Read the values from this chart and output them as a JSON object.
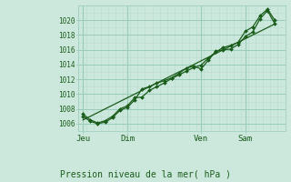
{
  "background_color": "#cce8dc",
  "grid_color_major": "#99ccbb",
  "grid_color_minor": "#b8ddd0",
  "line_color": "#1a5c1a",
  "marker_color": "#1a5c1a",
  "title": "Pression niveau de la mer( hPa )",
  "ylim": [
    1005.0,
    1022.0
  ],
  "yticks": [
    1006,
    1008,
    1010,
    1012,
    1014,
    1016,
    1018,
    1020
  ],
  "day_labels": [
    "Jeu",
    "Dim",
    "Ven",
    "Sam"
  ],
  "day_positions": [
    0,
    3,
    8,
    11
  ],
  "xlim": [
    -0.3,
    13.7
  ],
  "vline_positions": [
    0,
    3,
    8,
    11
  ],
  "line1_x": [
    0,
    0.5,
    1.0,
    1.5,
    2.0,
    2.5,
    3.0,
    3.5,
    4.0,
    4.5,
    5.0,
    5.5,
    6.0,
    6.5,
    7.0,
    7.5,
    8.0,
    8.5,
    9.0,
    9.5,
    10.0,
    10.5,
    11.0,
    11.5,
    12.0,
    12.5,
    13.0
  ],
  "line1_y": [
    1007.0,
    1006.3,
    1006.0,
    1006.2,
    1006.8,
    1007.8,
    1008.2,
    1009.2,
    1010.7,
    1011.0,
    1011.5,
    1011.8,
    1012.2,
    1012.8,
    1013.5,
    1013.8,
    1013.4,
    1014.6,
    1015.8,
    1016.0,
    1016.1,
    1016.7,
    1017.8,
    1018.4,
    1020.2,
    1021.3,
    1019.5
  ],
  "line2_x": [
    0,
    0.5,
    1.0,
    1.5,
    2.0,
    2.5,
    3.0,
    3.5,
    4.0,
    4.5,
    5.0,
    5.5,
    6.0,
    6.5,
    7.0,
    7.5,
    8.0,
    8.5,
    9.0,
    9.5,
    10.0,
    10.5,
    11.0,
    11.5,
    12.0,
    12.5,
    13.0
  ],
  "line2_y": [
    1007.3,
    1006.5,
    1006.1,
    1006.4,
    1007.0,
    1008.0,
    1008.4,
    1009.5,
    1009.6,
    1010.5,
    1011.0,
    1011.5,
    1012.1,
    1012.6,
    1013.1,
    1013.6,
    1013.9,
    1014.9,
    1015.7,
    1016.3,
    1016.6,
    1017.0,
    1018.5,
    1019.1,
    1020.6,
    1021.5,
    1020.0
  ],
  "line3_x": [
    0.0,
    13.0
  ],
  "line3_y": [
    1006.5,
    1019.5
  ],
  "marker_size": 2.0,
  "line_width": 0.9
}
